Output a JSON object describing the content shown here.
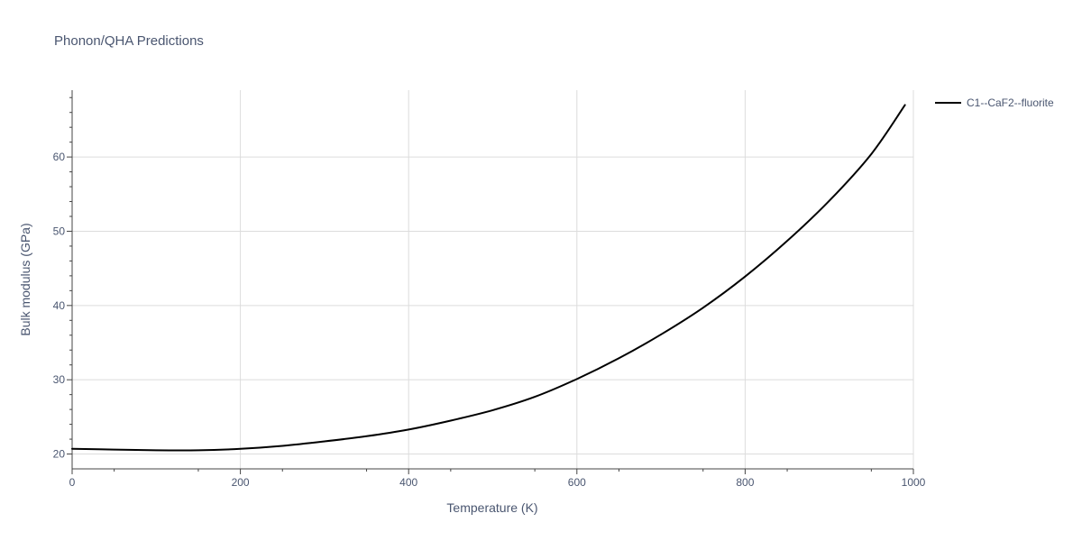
{
  "chart_data": {
    "type": "line",
    "title": "Phonon/QHA Predictions",
    "xlabel": "Temperature (K)",
    "ylabel": "Bulk modulus (GPa)",
    "xlim": [
      0,
      1000
    ],
    "ylim": [
      18,
      69
    ],
    "x_ticks": [
      0,
      200,
      400,
      600,
      800,
      1000
    ],
    "y_ticks": [
      20,
      30,
      40,
      50,
      60
    ],
    "grid": true,
    "legend_position": "top-right",
    "series": [
      {
        "name": "C1--CaF2--fluorite",
        "color": "#000000",
        "x": [
          0,
          50,
          100,
          150,
          200,
          250,
          300,
          350,
          400,
          450,
          500,
          550,
          600,
          650,
          700,
          750,
          800,
          850,
          900,
          950,
          990
        ],
        "y": [
          20.7,
          20.6,
          20.5,
          20.5,
          20.7,
          21.1,
          21.7,
          22.4,
          23.3,
          24.5,
          25.9,
          27.7,
          30.1,
          32.9,
          36.1,
          39.7,
          43.9,
          48.7,
          54.1,
          60.4,
          67.0
        ]
      }
    ]
  }
}
